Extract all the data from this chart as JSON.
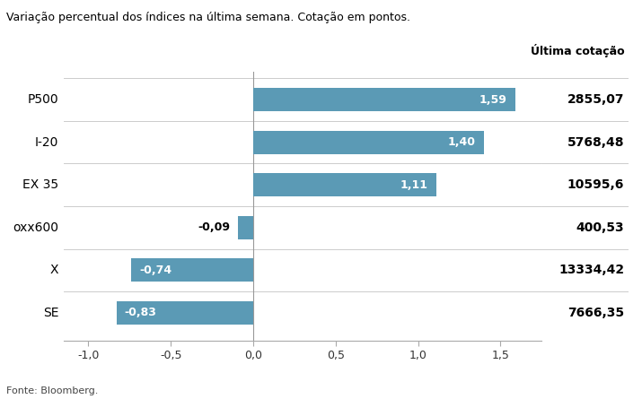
{
  "subtitle": "Variação percentual dos índices na última semana. Cotação em pontos.",
  "source": "Fonte: Bloomberg.",
  "col_header": "Última cotação",
  "labels_left": [
    "P500",
    "I-20",
    "EX 35",
    "oxx600",
    "X",
    "SE"
  ],
  "values": [
    1.59,
    1.4,
    1.11,
    -0.09,
    -0.74,
    -0.83
  ],
  "value_labels": [
    "1,59",
    "1,40",
    "1,11",
    "-0,09",
    "-0,74",
    "-0,83"
  ],
  "cotacoes": [
    "2855,07",
    "5768,48",
    "10595,6",
    "400,53",
    "13334,42",
    "7666,35"
  ],
  "bar_color": "#5b9ab5",
  "background_color": "#ffffff",
  "text_color": "#000000",
  "bar_label_color": "#ffffff",
  "xlim": [
    -1.15,
    1.75
  ],
  "xticks": [
    -1.0,
    -0.5,
    0.0,
    0.5,
    1.0,
    1.5
  ],
  "xtick_labels": [
    "-1,0",
    "-0,5",
    "0,0",
    "0,5",
    "1,0",
    "1,5"
  ],
  "bar_height": 0.55,
  "figsize": [
    7.15,
    4.45
  ],
  "dpi": 100
}
